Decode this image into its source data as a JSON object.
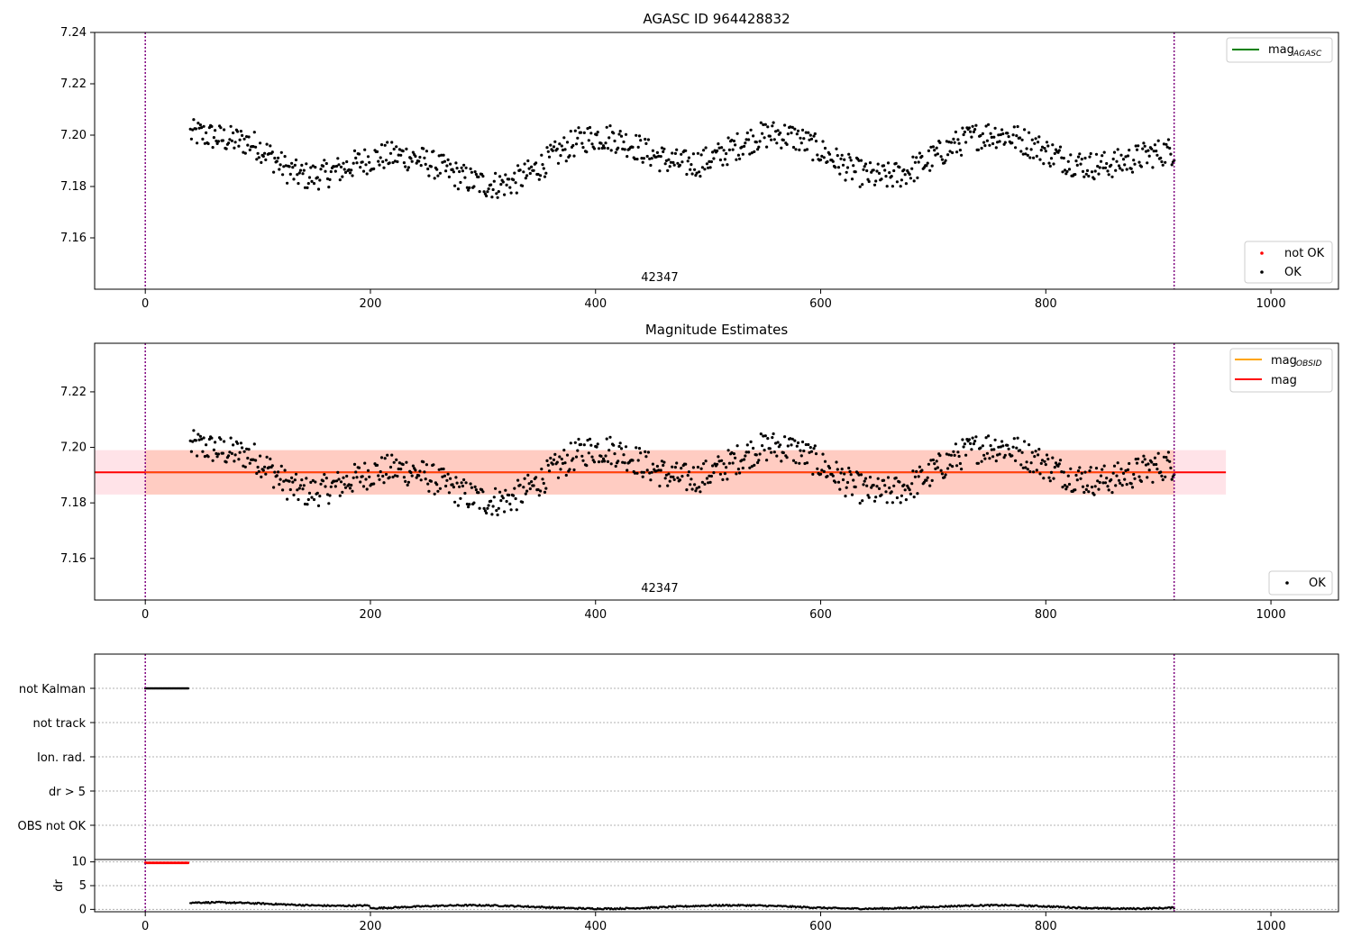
{
  "colors": {
    "ok": "#000000",
    "not_ok": "#ff0000",
    "agasc_line": "#008000",
    "obsid_line": "#ffa500",
    "mag_line": "#ff0000",
    "band_outer": "#ffc0cb",
    "band_inner": "#ffa07a",
    "vline": "#800080",
    "grid": "#b0b0b0"
  },
  "chart_data": [
    {
      "type": "scatter",
      "title": "AGASC ID 964428832",
      "xlim": [
        -45,
        1060
      ],
      "ylim": [
        7.14,
        7.24
      ],
      "xticks": [
        "0",
        "200",
        "400",
        "600",
        "800",
        "1000"
      ],
      "yticks": [
        "7.16",
        "7.18",
        "7.20",
        "7.22",
        "7.24"
      ],
      "vlines": [
        0,
        914
      ],
      "annotation": {
        "text": "42347",
        "x": 457
      },
      "legend_lines": [
        {
          "label": "mag",
          "sub": "AGASC",
          "color": "#008000"
        }
      ],
      "legend_points": [
        {
          "label": "not OK",
          "color": "#ff0000"
        },
        {
          "label": "OK",
          "color": "#000000"
        }
      ],
      "series": [
        {
          "name": "OK",
          "x_range": [
            40,
            914
          ],
          "mean": 7.191,
          "spread": 0.006
        }
      ]
    },
    {
      "type": "scatter",
      "title": "Magnitude Estimates",
      "xlim": [
        -45,
        1060
      ],
      "ylim": [
        7.145,
        7.2375
      ],
      "xticks": [
        "0",
        "200",
        "400",
        "600",
        "800",
        "1000"
      ],
      "yticks": [
        "7.16",
        "7.18",
        "7.20",
        "7.22"
      ],
      "vlines": [
        0,
        914
      ],
      "annotation": {
        "text": "42347",
        "x": 457
      },
      "mag": 7.191,
      "band_outer": [
        7.183,
        7.199
      ],
      "band_inner": [
        7.183,
        7.199
      ],
      "band_x": [
        -45,
        960
      ],
      "legend_lines": [
        {
          "label": "mag",
          "sub": "OBSID",
          "color": "#ffa500"
        },
        {
          "label": "mag",
          "sub": "",
          "color": "#ff0000"
        }
      ],
      "legend_points": [
        {
          "label": "OK",
          "color": "#000000"
        }
      ],
      "series": [
        {
          "name": "OK",
          "x_range": [
            40,
            914
          ],
          "mean": 7.191,
          "spread": 0.006
        }
      ]
    },
    {
      "type": "scatter",
      "title": "",
      "xlim": [
        -45,
        1060
      ],
      "flag_labels": [
        "not Kalman",
        "not track",
        "Ion. rad.",
        "dr > 5",
        "OBS not OK"
      ],
      "flag_points": {
        "not Kalman": [
          0,
          38
        ]
      },
      "vlines": [
        0,
        914
      ]
    },
    {
      "type": "scatter",
      "ylabel": "dr",
      "xlim": [
        -45,
        1060
      ],
      "ylim": [
        -0.5,
        10.5
      ],
      "xticks": [
        "0",
        "200",
        "400",
        "600",
        "800",
        "1000"
      ],
      "yticks": [
        "0",
        "5",
        "10"
      ],
      "vlines": [
        0,
        914
      ],
      "series": [
        {
          "name": "dr > 5",
          "x_range": [
            0,
            38
          ],
          "value": 9.8
        },
        {
          "name": "dr",
          "x_range": [
            40,
            914
          ],
          "mean": 0.5
        }
      ]
    }
  ]
}
